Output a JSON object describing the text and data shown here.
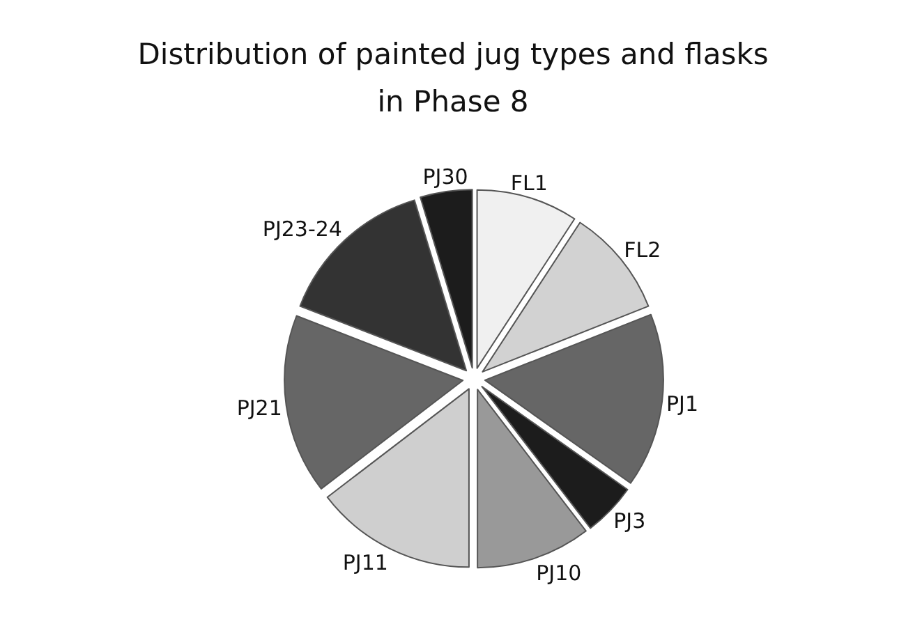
{
  "chart_data": {
    "type": "pie",
    "title": "Distribution of painted jug types and flasks in Phase 8",
    "categories": [
      "FL1",
      "FL2",
      "PJ1",
      "PJ3",
      "PJ10",
      "PJ11",
      "PJ21",
      "PJ23-24",
      "PJ30"
    ],
    "values": [
      9.2,
      9.8,
      15.8,
      4.8,
      10.4,
      14.6,
      16.3,
      14.4,
      4.7
    ],
    "colors": [
      "#f0f0f0",
      "#d2d2d2",
      "#666666",
      "#1c1c1c",
      "#999999",
      "#cfcfcf",
      "#666666",
      "#333333",
      "#1c1c1c"
    ]
  }
}
